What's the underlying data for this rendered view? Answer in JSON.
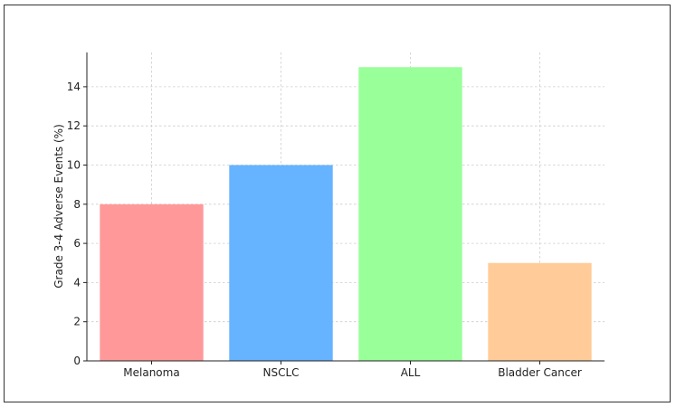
{
  "chart_data": {
    "type": "bar",
    "title": "",
    "xlabel": "",
    "ylabel": "Grade 3-4 Adverse Events (%)",
    "categories": [
      "Melanoma",
      "NSCLC",
      "ALL",
      "Bladder Cancer"
    ],
    "values": [
      8,
      10,
      15,
      5
    ],
    "colors": [
      "#ff9999",
      "#66b3ff",
      "#99ff99",
      "#ffcc99"
    ],
    "ylim": [
      0,
      15.75
    ],
    "yticks": [
      0,
      2,
      4,
      6,
      8,
      10,
      12,
      14
    ],
    "grid": true
  }
}
